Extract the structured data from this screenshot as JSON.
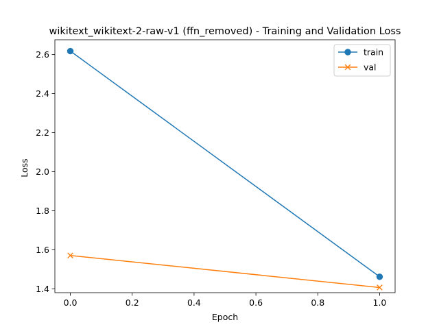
{
  "chart_data": {
    "type": "line",
    "title": "wikitext_wikitext-2-raw-v1 (ffn_removed) - Training and Validation Loss",
    "xlabel": "Epoch",
    "ylabel": "Loss",
    "xlim": [
      -0.05,
      1.05
    ],
    "ylim": [
      1.3805,
      2.676
    ],
    "xticks": [
      0.0,
      0.2,
      0.4,
      0.6,
      0.8,
      1.0
    ],
    "xtick_labels": [
      "0.0",
      "0.2",
      "0.4",
      "0.6",
      "0.8",
      "1.0"
    ],
    "yticks": [
      1.4,
      1.6,
      1.8,
      2.0,
      2.2,
      2.4,
      2.6
    ],
    "ytick_labels": [
      "1.4",
      "1.6",
      "1.8",
      "2.0",
      "2.2",
      "2.4",
      "2.6"
    ],
    "grid": false,
    "legend_position": "top-right",
    "series": [
      {
        "name": "train",
        "x": [
          0,
          1
        ],
        "y": [
          2.618,
          1.462
        ],
        "color": "#1f77b4",
        "marker": "circle"
      },
      {
        "name": "val",
        "x": [
          0,
          1
        ],
        "y": [
          1.571,
          1.407
        ],
        "color": "#ff7f0e",
        "marker": "x"
      }
    ]
  }
}
